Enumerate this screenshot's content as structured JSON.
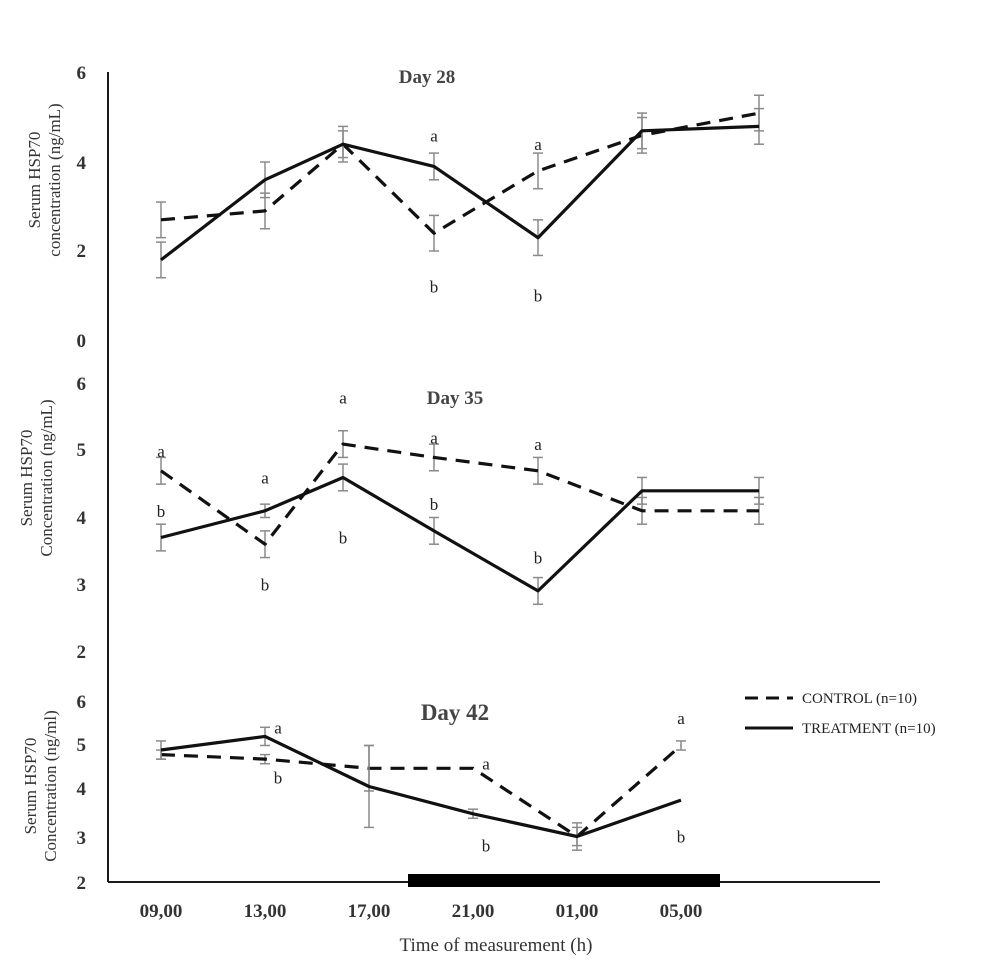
{
  "chart_data": {
    "x_categories": [
      "09,00",
      "13,00",
      "17,00",
      "21,00",
      "01,00",
      "05,00"
    ],
    "xlabel": "Time of measurement (h)",
    "legend": {
      "control": "CONTROL (n=10)",
      "treatment": "TREATMENT (n=10)"
    },
    "night_bar": {
      "from_h": 18.5,
      "to_h": 30.5
    },
    "panels": [
      {
        "type": "line",
        "title": "Day 28",
        "ylabel_lines": [
          "Serum HSP70",
          "concentration  (ng/mL)"
        ],
        "ylim": [
          0,
          6
        ],
        "yticks": [
          "6",
          "4",
          "2",
          "0"
        ],
        "series": [
          {
            "name": "CONTROL (n=10)",
            "style": "dashed",
            "x": [
              9,
              13,
              16,
              19.5,
              23.5,
              27.5,
              32
            ],
            "values": [
              2.7,
              2.9,
              4.4,
              2.4,
              3.8,
              4.6,
              5.1
            ],
            "errors": [
              0.4,
              0.4,
              0.3,
              0.4,
              0.4,
              0.4,
              0.4
            ]
          },
          {
            "name": "TREATMENT (n=10)",
            "style": "solid",
            "x": [
              9,
              13,
              16,
              19.5,
              23.5,
              27.5,
              32
            ],
            "values": [
              1.8,
              3.6,
              4.4,
              3.9,
              2.3,
              4.7,
              4.8
            ],
            "errors": [
              0.4,
              0.4,
              0.4,
              0.3,
              0.4,
              0.4,
              0.4
            ]
          }
        ],
        "annotations": [
          {
            "text": "a",
            "x": 19.5,
            "y": 4.6
          },
          {
            "text": "b",
            "x": 19.5,
            "y": 1.2
          },
          {
            "text": "a",
            "x": 23.5,
            "y": 4.4
          },
          {
            "text": "b",
            "x": 23.5,
            "y": 1.0
          }
        ]
      },
      {
        "type": "line",
        "title": "Day 35",
        "ylabel_lines": [
          "Serum HSP70",
          "Concentration  (ng/mL)"
        ],
        "ylim": [
          2,
          6
        ],
        "yticks": [
          "6",
          "5",
          "4",
          "3",
          "2"
        ],
        "series": [
          {
            "name": "CONTROL (n=10)",
            "style": "dashed",
            "x": [
              9,
              13,
              16,
              19.5,
              23.5,
              27.5,
              32
            ],
            "values": [
              4.7,
              3.6,
              5.1,
              4.9,
              4.7,
              4.1,
              4.1
            ],
            "errors": [
              0.2,
              0.2,
              0.2,
              0.2,
              0.2,
              0.2,
              0.2
            ]
          },
          {
            "name": "TREATMENT (n=10)",
            "style": "solid",
            "x": [
              9,
              13,
              16,
              19.5,
              23.5,
              27.5,
              32
            ],
            "values": [
              3.7,
              4.1,
              4.6,
              3.8,
              2.9,
              4.4,
              4.4
            ],
            "errors": [
              0.2,
              0.1,
              0.2,
              0.2,
              0.2,
              0.2,
              0.2
            ]
          }
        ],
        "annotations": [
          {
            "text": "a",
            "x": 9,
            "y": 5.0
          },
          {
            "text": "b",
            "x": 9,
            "y": 4.1
          },
          {
            "text": "a",
            "x": 13,
            "y": 4.6
          },
          {
            "text": "b",
            "x": 13,
            "y": 3.0
          },
          {
            "text": "a",
            "x": 16,
            "y": 5.8
          },
          {
            "text": "b",
            "x": 16,
            "y": 3.7
          },
          {
            "text": "a",
            "x": 19.5,
            "y": 5.2
          },
          {
            "text": "b",
            "x": 19.5,
            "y": 4.2
          },
          {
            "text": "a",
            "x": 23.5,
            "y": 5.1
          },
          {
            "text": "b",
            "x": 23.5,
            "y": 3.4
          }
        ]
      },
      {
        "type": "line",
        "title": "Day 42",
        "ylabel_lines": [
          "Serum HSP70",
          "Concentration (ng/ml)"
        ],
        "ylim": [
          2,
          6
        ],
        "yticks": [
          "6",
          "5",
          "4",
          "3",
          "2"
        ],
        "series": [
          {
            "name": "CONTROL (n=10)",
            "style": "dashed",
            "x": [
              9,
              13,
              17,
              21,
              25,
              29
            ],
            "values": [
              4.8,
              4.7,
              4.5,
              4.5,
              3.0,
              5.0
            ],
            "errors": [
              0.1,
              0.1,
              0.5,
              0.0,
              0.3,
              0.1
            ]
          },
          {
            "name": "TREATMENT (n=10)",
            "style": "solid",
            "x": [
              9,
              13,
              17,
              21,
              25,
              29
            ],
            "values": [
              4.9,
              5.2,
              4.1,
              3.5,
              3.0,
              3.8
            ],
            "errors": [
              0.2,
              0.2,
              0.9,
              0.1,
              0.2,
              0.0
            ]
          }
        ],
        "annotations": [
          {
            "text": "a",
            "x": 13.5,
            "y": 5.4
          },
          {
            "text": "b",
            "x": 13.5,
            "y": 4.3
          },
          {
            "text": "a",
            "x": 21.5,
            "y": 4.6
          },
          {
            "text": "b",
            "x": 21.5,
            "y": 2.8
          },
          {
            "text": "a",
            "x": 29,
            "y": 5.6
          },
          {
            "text": "b",
            "x": 29,
            "y": 3.0
          }
        ]
      }
    ]
  }
}
